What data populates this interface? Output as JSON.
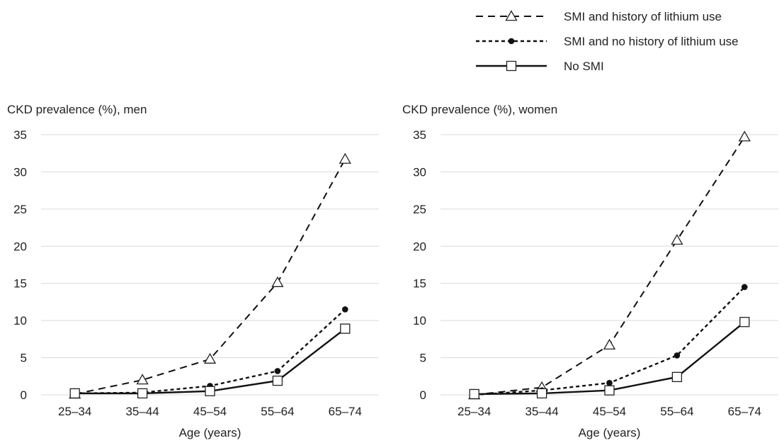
{
  "legend": [
    {
      "label": "SMI and history of lithium use",
      "marker": "triangle-open",
      "dash": "dashed"
    },
    {
      "label": "SMI and no history of lithium use",
      "marker": "circle-filled",
      "dash": "dotted"
    },
    {
      "label": "No SMI",
      "marker": "square-open",
      "dash": "solid"
    }
  ],
  "chart_data": [
    {
      "type": "line",
      "title": "CKD prevalence (%), men",
      "xlabel": "Age (years)",
      "ylabel": "CKD prevalence (%), men",
      "categories": [
        "25–34",
        "35–44",
        "45–54",
        "55–64",
        "65–74"
      ],
      "ylim": [
        0,
        35
      ],
      "yticks": [
        0,
        5,
        10,
        15,
        20,
        25,
        30,
        35
      ],
      "grid": true,
      "series": [
        {
          "name": "SMI and history of lithium use",
          "values": [
            0.1,
            2.0,
            4.8,
            15.1,
            31.7
          ]
        },
        {
          "name": "SMI and no history of lithium use",
          "values": [
            0.2,
            0.3,
            1.2,
            3.2,
            11.5
          ]
        },
        {
          "name": "No SMI",
          "values": [
            0.2,
            0.2,
            0.5,
            1.9,
            8.9
          ]
        }
      ]
    },
    {
      "type": "line",
      "title": "CKD prevalence (%), women",
      "xlabel": "Age (years)",
      "ylabel": "CKD prevalence (%), women",
      "categories": [
        "25–34",
        "35–44",
        "45–54",
        "55–64",
        "65–74"
      ],
      "ylim": [
        0,
        35
      ],
      "yticks": [
        0,
        5,
        10,
        15,
        20,
        25,
        30,
        35
      ],
      "grid": true,
      "series": [
        {
          "name": "SMI and history of lithium use",
          "values": [
            0.0,
            1.0,
            6.7,
            20.8,
            34.7
          ]
        },
        {
          "name": "SMI and no history of lithium use",
          "values": [
            0.0,
            0.6,
            1.6,
            5.3,
            14.5
          ]
        },
        {
          "name": "No SMI",
          "values": [
            0.1,
            0.2,
            0.6,
            2.4,
            9.8
          ]
        }
      ]
    }
  ]
}
